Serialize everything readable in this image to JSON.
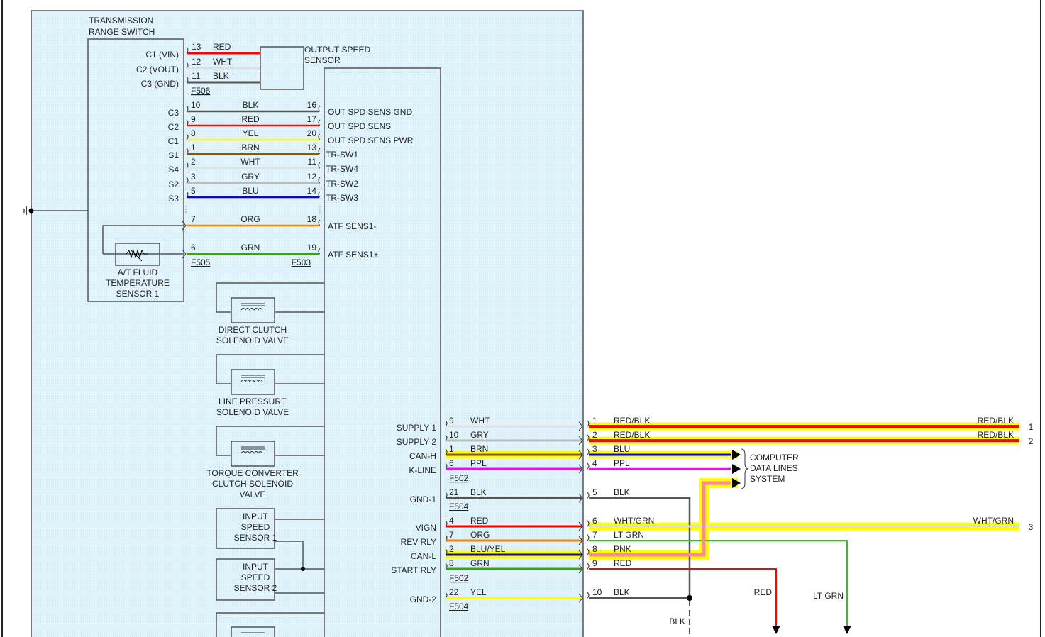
{
  "transmission_range_switch": {
    "title_lines": [
      "TRANSMISSION",
      "RANGE SWITCH"
    ],
    "pins": [
      "C1 (VIN)",
      "C2 (VOUT)",
      "C3 (GND)",
      "C3",
      "C2",
      "C1",
      "S1",
      "S4",
      "S2",
      "S3"
    ]
  },
  "output_speed_sensor": {
    "label_lines": [
      "OUTPUT SPEED",
      "SENSOR"
    ]
  },
  "atf_sensor": {
    "label_lines": [
      "A/T FLUID",
      "TEMPERATURE",
      "SENSOR 1"
    ]
  },
  "connectors": {
    "f506": "F506",
    "f505": "F505",
    "f503": "F503",
    "f502": "F502",
    "f504": "F504"
  },
  "wires_top": [
    {
      "pin_left": "13",
      "color": "RED",
      "hex": "#ff0000",
      "pin_right": "",
      "pcm_label": ""
    },
    {
      "pin_left": "12",
      "color": "WHT",
      "hex": "#e0e0e0",
      "pin_right": "",
      "pcm_label": ""
    },
    {
      "pin_left": "11",
      "color": "BLK",
      "hex": "#555555",
      "pin_right": "",
      "pcm_label": ""
    },
    {
      "pin_left": "10",
      "color": "BLK",
      "hex": "#555555",
      "pin_right": "16",
      "pcm_label": "OUT SPD SENS GND"
    },
    {
      "pin_left": "9",
      "color": "RED",
      "hex": "#ff0000",
      "pin_right": "17",
      "pcm_label": "OUT SPD SENS"
    },
    {
      "pin_left": "8",
      "color": "YEL",
      "hex": "#ffff00",
      "pin_right": "20",
      "pcm_label": "OUT SPD SENS PWR"
    },
    {
      "pin_left": "1",
      "color": "BRN",
      "hex": "#8b5a00",
      "pin_right": "13",
      "pcm_label": "TR-SW1"
    },
    {
      "pin_left": "2",
      "color": "WHT",
      "hex": "#e0e0e0",
      "pin_right": "11",
      "pcm_label": "TR-SW4"
    },
    {
      "pin_left": "3",
      "color": "GRY",
      "hex": "#bbbbbb",
      "pin_right": "12",
      "pcm_label": "TR-SW2"
    },
    {
      "pin_left": "5",
      "color": "BLU",
      "hex": "#0000ff",
      "pin_right": "14",
      "pcm_label": "TR-SW3"
    },
    {
      "pin_left": "7",
      "color": "ORG",
      "hex": "#ff8000",
      "pin_right": "18",
      "pcm_label": "ATF SENS1-"
    },
    {
      "pin_left": "6",
      "color": "GRN",
      "hex": "#33aa00",
      "pin_right": "19",
      "pcm_label": "ATF SENS1+"
    }
  ],
  "solenoids": [
    {
      "label_lines": [
        "DIRECT CLUTCH",
        "SOLENOID VALVE"
      ]
    },
    {
      "label_lines": [
        "LINE PRESSURE",
        "SOLENOID VALVE"
      ]
    },
    {
      "label_lines": [
        "TORQUE CONVERTER",
        "CLUTCH SOLENOID",
        "VALVE"
      ]
    }
  ],
  "input_speed_sensors": [
    {
      "label_lines": [
        "INPUT",
        "SPEED",
        "SENSOR 1"
      ]
    },
    {
      "label_lines": [
        "INPUT",
        "SPEED",
        "SENSOR 2"
      ]
    }
  ],
  "wires_bottom": [
    {
      "pcm_label": "SUPPLY 1",
      "pin_left": "9",
      "color_left": "WHT",
      "hex_left": "#e0e0e0",
      "pin_right": "1",
      "color_right": "RED/BLK",
      "hex_right": "#ff0000",
      "highlight_right": true,
      "far_label": "RED/BLK",
      "ref": "1"
    },
    {
      "pcm_label": "SUPPLY 2",
      "pin_left": "10",
      "color_left": "GRY",
      "hex_left": "#bbbbbb",
      "pin_right": "2",
      "color_right": "RED/BLK",
      "hex_right": "#ff0000",
      "highlight_right": true,
      "far_label": "RED/BLK",
      "ref": "2"
    },
    {
      "pcm_label": "CAN-H",
      "pin_left": "1",
      "color_left": "BRN",
      "hex_left": "#8b5a00",
      "highlight_left": true,
      "pin_right": "3",
      "color_right": "BLU",
      "hex_right": "#0000ff",
      "highlight_right": true
    },
    {
      "pcm_label": "K-LINE",
      "pin_left": "6",
      "color_left": "PPL",
      "hex_left": "#ff00ff",
      "pin_right": "4",
      "color_right": "PPL",
      "hex_right": "#ff00ff"
    },
    {
      "pcm_label": "GND-1",
      "pin_left": "21",
      "color_left": "BLK",
      "hex_left": "#555555",
      "pin_right": "5",
      "color_right": "BLK",
      "hex_right": "#555555"
    },
    {
      "pcm_label": "VIGN",
      "pin_left": "4",
      "color_left": "RED",
      "hex_left": "#ff0000",
      "pin_right": "6",
      "color_right": "WHT/GRN",
      "hex_right": "#dddddd",
      "highlight_right": true,
      "far_label": "WHT/GRN",
      "ref": "3"
    },
    {
      "pcm_label": "REV RLY",
      "pin_left": "7",
      "color_left": "ORG",
      "hex_left": "#ff8000",
      "pin_right": "7",
      "color_right": "LT GRN",
      "hex_right": "#00dd00"
    },
    {
      "pcm_label": "CAN-L",
      "pin_left": "2",
      "color_left": "BLU/YEL",
      "hex_left": "#0000ff",
      "highlight_left": true,
      "pin_right": "8",
      "color_right": "PNK",
      "hex_right": "#ff8899",
      "highlight_right": true
    },
    {
      "pcm_label": "START RLY",
      "pin_left": "8",
      "color_left": "GRN",
      "hex_left": "#33aa00",
      "pin_right": "9",
      "color_right": "RED",
      "hex_right": "#ff0000"
    },
    {
      "pcm_label": "GND-2",
      "pin_left": "22",
      "color_left": "YEL",
      "hex_left": "#ffff00",
      "pin_right": "10",
      "color_right": "BLK",
      "hex_right": "#555555"
    }
  ],
  "computer_data_lines": {
    "label_lines": [
      "COMPUTER",
      "DATA LINES",
      "SYSTEM"
    ]
  },
  "drop_labels": {
    "blk": "BLK",
    "red": "RED",
    "lt_grn": "LT GRN"
  },
  "colors": {
    "panel_bg": "#e4f5fb",
    "highlight": "#ffff00",
    "outline": "#555555"
  }
}
